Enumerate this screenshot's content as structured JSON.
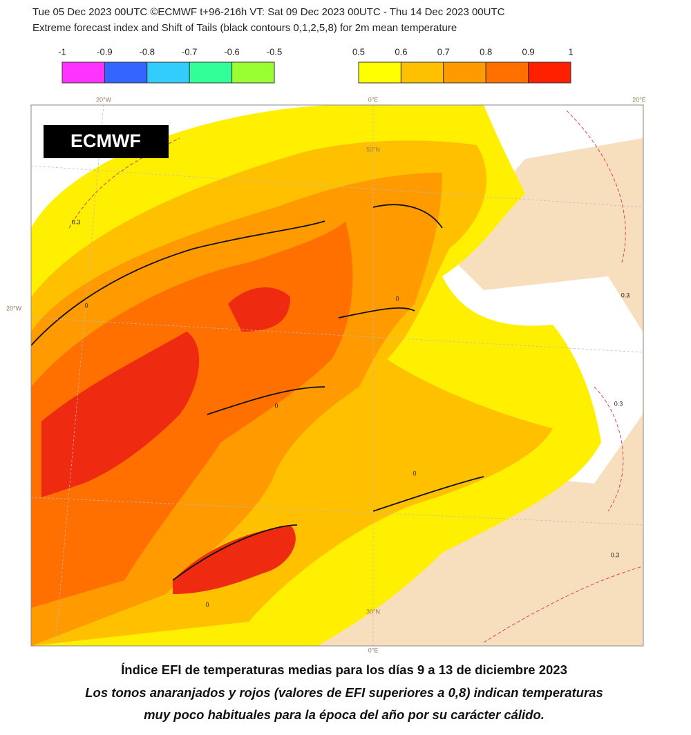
{
  "header": {
    "line1": "Tue 05 Dec 2023 00UTC ©ECMWF t+96-216h  VT: Sat 09 Dec 2023 00UTC - Thu 14 Dec 2023 00UTC",
    "line2": "Extreme forecast index and Shift of Tails (black contours 0,1,2,5,8) for 2m mean temperature"
  },
  "legend": {
    "cold": {
      "labels": [
        "-1",
        "-0.9",
        "-0.8",
        "-0.7",
        "-0.6",
        "-0.5"
      ],
      "colors": [
        "#ff33ff",
        "#3366ff",
        "#33ccff",
        "#33ff99",
        "#99ff33"
      ]
    },
    "warm": {
      "labels": [
        "0.5",
        "0.6",
        "0.7",
        "0.8",
        "0.9",
        "1"
      ],
      "colors": [
        "#ffff00",
        "#ffc000",
        "#ff9a00",
        "#ff7000",
        "#ff2000"
      ]
    }
  },
  "map": {
    "logo": "ECMWF",
    "graticule_labels": [
      "20°W",
      "0°E",
      "20°E",
      "50°N",
      "20°W",
      "30°N",
      "0°E"
    ],
    "contour_labels": [
      "0.3",
      "0",
      "0",
      "0",
      "0.3",
      "0.3",
      "0",
      "0",
      "0.3"
    ]
  },
  "caption": {
    "line1": "Índice EFI de temperaturas medias para los días 9 a 13 de diciembre 2023",
    "line2": "Los tonos anaranjados y rojos (valores de EFI superiores a 0,8) indican temperaturas",
    "line3": "muy poco habituales para la época del año por su carácter cálido."
  }
}
